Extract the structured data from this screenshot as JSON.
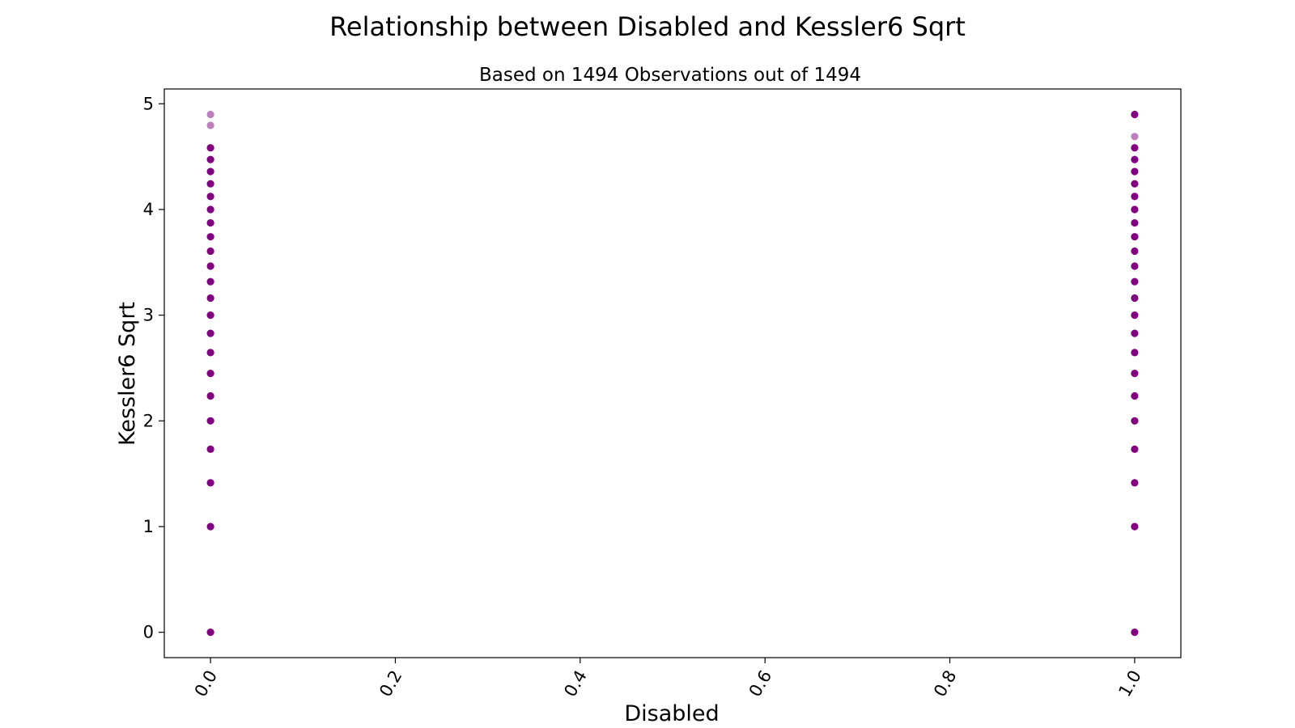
{
  "chart_data": {
    "type": "scatter",
    "title": "Relationship between Disabled and Kessler6 Sqrt",
    "subtitle": "Based on 1494 Observations out of 1494",
    "xlabel": "Disabled",
    "ylabel": "Kessler6 Sqrt",
    "xlim": [
      -0.05,
      1.05
    ],
    "ylim": [
      -0.24,
      5.14
    ],
    "xticks": [
      0.0,
      0.2,
      0.4,
      0.6,
      0.8,
      1.0
    ],
    "xtick_labels": [
      "0.0",
      "0.2",
      "0.4",
      "0.6",
      "0.8",
      "1.0"
    ],
    "xtick_rotation_deg": 60,
    "yticks": [
      0,
      1,
      2,
      3,
      4,
      5
    ],
    "ytick_labels": [
      "0",
      "1",
      "2",
      "3",
      "4",
      "5"
    ],
    "grid": false,
    "legend": "none",
    "marker_color": "#800080",
    "series": [
      {
        "points": [
          {
            "x": 0,
            "y": 0.0
          },
          {
            "x": 0,
            "y": 1.0
          },
          {
            "x": 0,
            "y": 1.414
          },
          {
            "x": 0,
            "y": 1.732
          },
          {
            "x": 0,
            "y": 2.0
          },
          {
            "x": 0,
            "y": 2.236
          },
          {
            "x": 0,
            "y": 2.449
          },
          {
            "x": 0,
            "y": 2.646
          },
          {
            "x": 0,
            "y": 2.828
          },
          {
            "x": 0,
            "y": 3.0
          },
          {
            "x": 0,
            "y": 3.162
          },
          {
            "x": 0,
            "y": 3.317
          },
          {
            "x": 0,
            "y": 3.464
          },
          {
            "x": 0,
            "y": 3.606
          },
          {
            "x": 0,
            "y": 3.742
          },
          {
            "x": 0,
            "y": 3.873
          },
          {
            "x": 0,
            "y": 4.0
          },
          {
            "x": 0,
            "y": 4.123
          },
          {
            "x": 0,
            "y": 4.243
          },
          {
            "x": 0,
            "y": 4.359
          },
          {
            "x": 0,
            "y": 4.472
          },
          {
            "x": 0,
            "y": 4.583
          },
          {
            "x": 0,
            "y": 4.796,
            "opacity": 0.5
          },
          {
            "x": 0,
            "y": 4.899,
            "opacity": 0.5
          },
          {
            "x": 1,
            "y": 0.0
          },
          {
            "x": 1,
            "y": 1.0
          },
          {
            "x": 1,
            "y": 1.414
          },
          {
            "x": 1,
            "y": 1.732
          },
          {
            "x": 1,
            "y": 2.0
          },
          {
            "x": 1,
            "y": 2.236
          },
          {
            "x": 1,
            "y": 2.449
          },
          {
            "x": 1,
            "y": 2.646
          },
          {
            "x": 1,
            "y": 2.828
          },
          {
            "x": 1,
            "y": 3.0
          },
          {
            "x": 1,
            "y": 3.162
          },
          {
            "x": 1,
            "y": 3.317
          },
          {
            "x": 1,
            "y": 3.464
          },
          {
            "x": 1,
            "y": 3.606
          },
          {
            "x": 1,
            "y": 3.742
          },
          {
            "x": 1,
            "y": 3.873
          },
          {
            "x": 1,
            "y": 4.0
          },
          {
            "x": 1,
            "y": 4.123
          },
          {
            "x": 1,
            "y": 4.243
          },
          {
            "x": 1,
            "y": 4.359
          },
          {
            "x": 1,
            "y": 4.472
          },
          {
            "x": 1,
            "y": 4.583
          },
          {
            "x": 1,
            "y": 4.69,
            "opacity": 0.5
          },
          {
            "x": 1,
            "y": 4.899
          }
        ]
      }
    ]
  }
}
